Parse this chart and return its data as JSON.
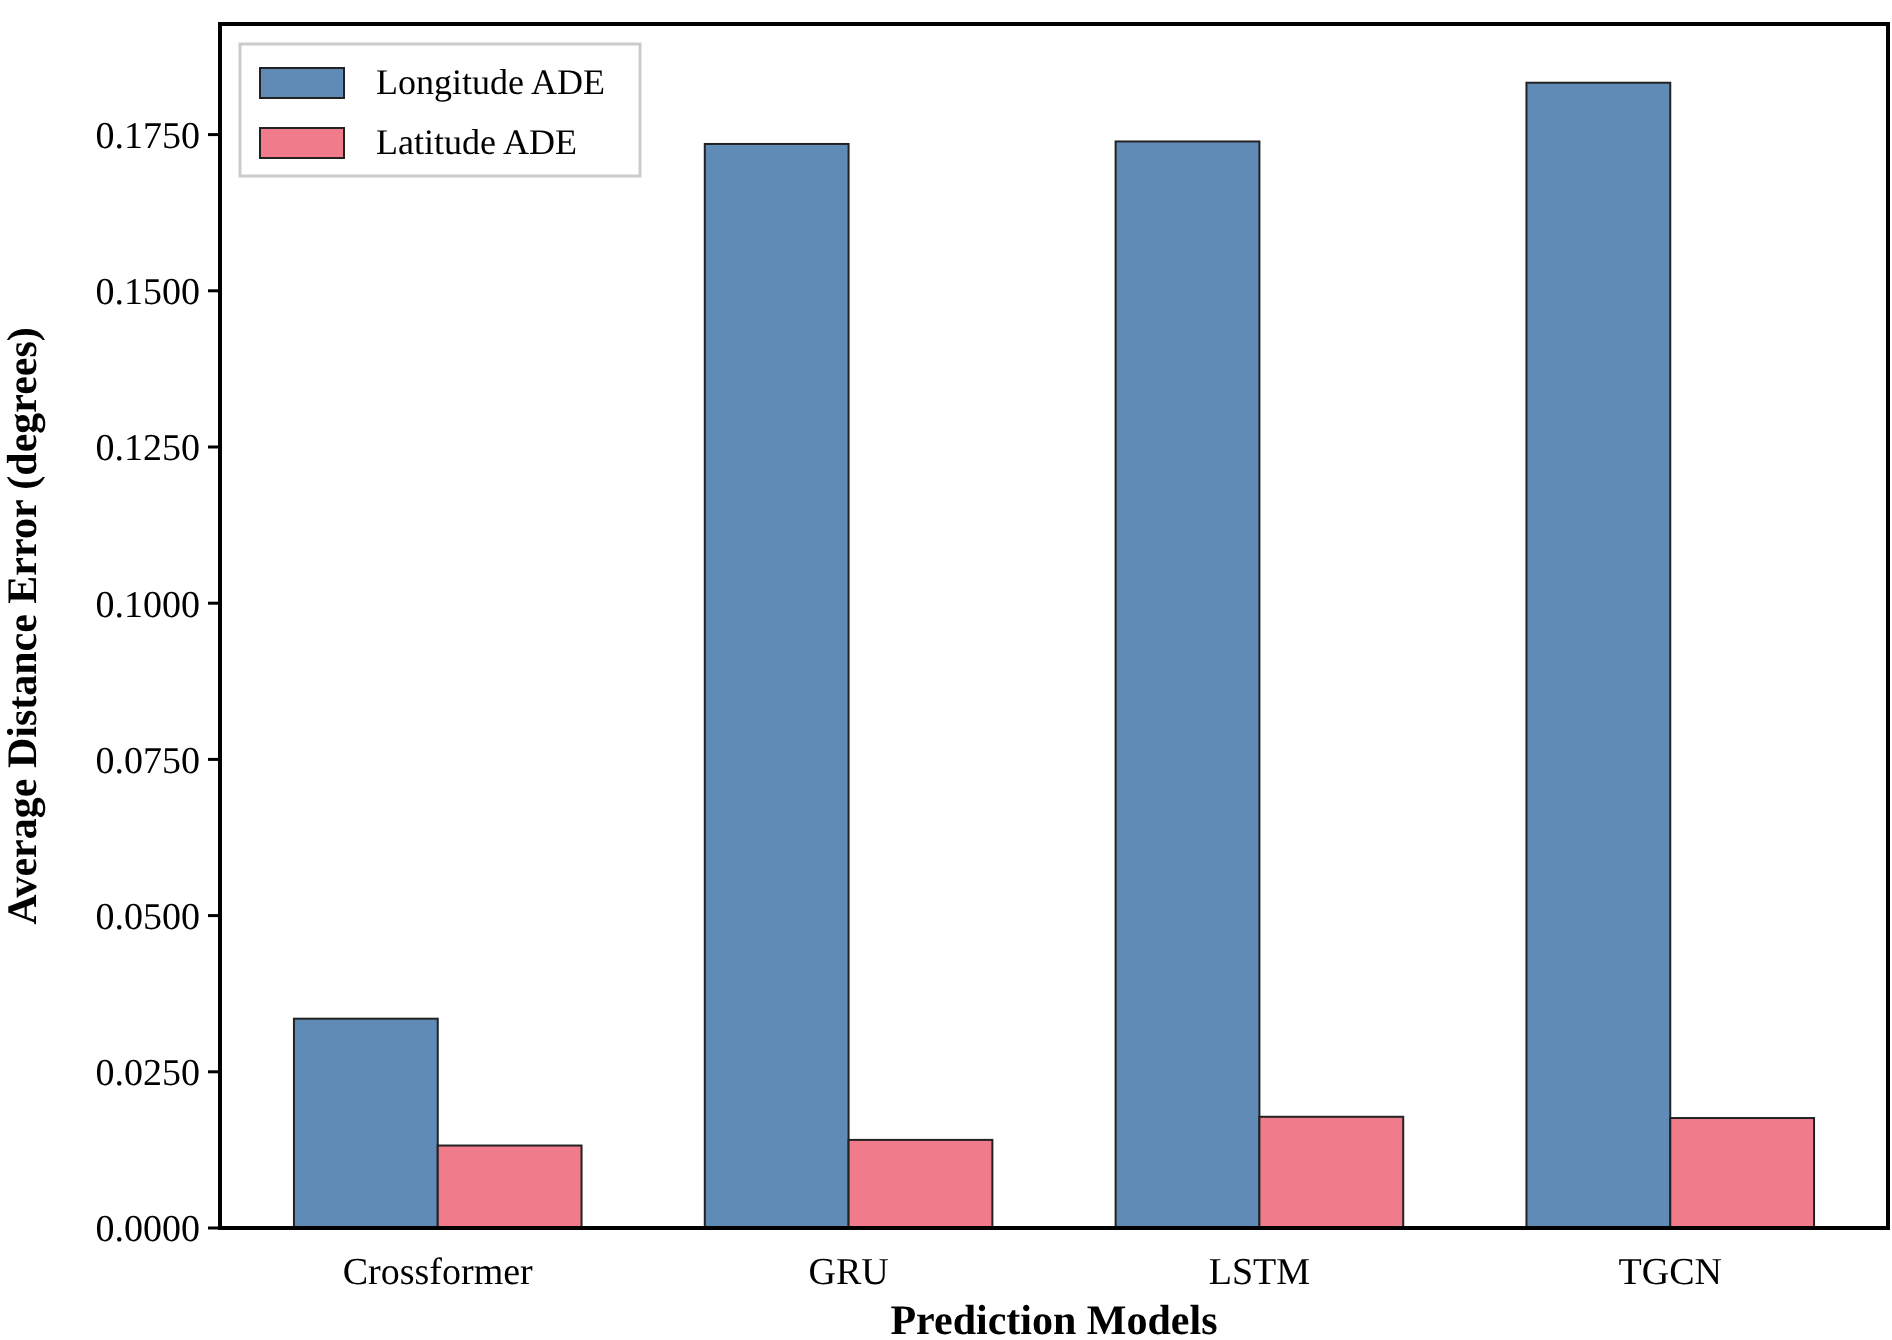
{
  "chart_data": {
    "type": "bar",
    "xlabel": "Prediction Models",
    "ylabel": "Average Distance Error (degrees)",
    "categories": [
      "Crossformer",
      "GRU",
      "LSTM",
      "TGCN"
    ],
    "series": [
      {
        "name": "Longitude ADE",
        "color": "#608bb7",
        "values": [
          0.0335,
          0.1735,
          0.1739,
          0.1833
        ]
      },
      {
        "name": "Latitude ADE",
        "color": "#ef7b8b",
        "values": [
          0.0132,
          0.0141,
          0.0178,
          0.0176
        ]
      }
    ],
    "ylim": [
      0,
      0.1927
    ],
    "yticks": [
      {
        "value": 0,
        "label": "0.0000"
      },
      {
        "value": 0.025,
        "label": "0.0250"
      },
      {
        "value": 0.05,
        "label": "0.0500"
      },
      {
        "value": 0.075,
        "label": "0.0750"
      },
      {
        "value": 0.1,
        "label": "0.1000"
      },
      {
        "value": 0.125,
        "label": "0.1250"
      },
      {
        "value": 0.15,
        "label": "0.1500"
      },
      {
        "value": 0.175,
        "label": "0.1750"
      }
    ],
    "grid": false,
    "legend": "top left"
  }
}
